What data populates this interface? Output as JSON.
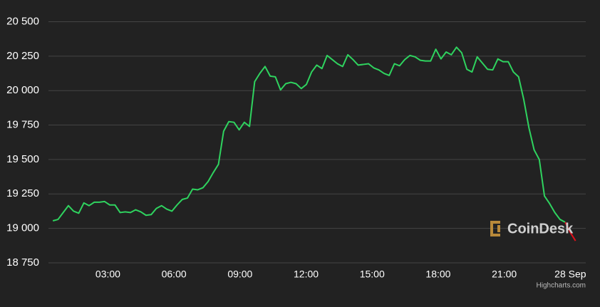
{
  "chart_data": {
    "type": "line",
    "x": [
      0.5,
      0.735,
      0.97,
      1.205,
      1.44,
      1.675,
      1.91,
      2.145,
      2.38,
      2.615,
      2.85,
      3.085,
      3.32,
      3.555,
      3.79,
      4.025,
      4.26,
      4.495,
      4.73,
      4.965,
      5.2,
      5.435,
      5.67,
      5.905,
      6.14,
      6.375,
      6.61,
      6.845,
      7.08,
      7.315,
      7.55,
      7.785,
      8.02,
      8.255,
      8.49,
      8.725,
      8.96,
      9.195,
      9.43,
      9.665,
      9.9,
      10.135,
      10.37,
      10.605,
      10.84,
      11.075,
      11.31,
      11.545,
      11.78,
      12.015,
      12.25,
      12.485,
      12.72,
      12.955,
      13.19,
      13.425,
      13.66,
      13.895,
      14.13,
      14.365,
      14.6,
      14.835,
      15.07,
      15.305,
      15.54,
      15.775,
      16.01,
      16.245,
      16.48,
      16.715,
      16.95,
      17.185,
      17.42,
      17.655,
      17.89,
      18.125,
      18.36,
      18.595,
      18.83,
      19.065,
      19.3,
      19.535,
      19.77,
      20.005,
      20.24,
      20.475,
      20.71,
      20.945,
      21.18,
      21.415,
      21.65,
      21.885,
      22.12,
      22.355,
      22.59,
      22.825,
      23.06,
      23.295,
      23.53,
      23.765,
      24.0,
      24.235
    ],
    "series": [
      {
        "color": "#2fd35f",
        "values": [
          19055,
          19065,
          19115,
          19165,
          19125,
          19110,
          19185,
          19165,
          19190,
          19190,
          19195,
          19170,
          19170,
          19115,
          19120,
          19115,
          19135,
          19120,
          19095,
          19100,
          19145,
          19165,
          19140,
          19125,
          19170,
          19210,
          19220,
          19285,
          19280,
          19295,
          19340,
          19405,
          19465,
          19705,
          19775,
          19770,
          19715,
          19770,
          19740,
          20065,
          20125,
          20175,
          20105,
          20100,
          20005,
          20050,
          20060,
          20050,
          20015,
          20045,
          20135,
          20185,
          20160,
          20255,
          20225,
          20195,
          20175,
          20260,
          20225,
          20185,
          20190,
          20195,
          20165,
          20150,
          20125,
          20110,
          20195,
          20180,
          20225,
          20255,
          20245,
          20220,
          20215,
          20215,
          20300,
          20230,
          20280,
          20260,
          20315,
          20275,
          20155,
          20135,
          20245,
          20200,
          20155,
          20150,
          20230,
          20210,
          20210,
          20135,
          20100,
          19935,
          19730,
          19570,
          19500,
          19235,
          19180,
          19115,
          19065,
          19045,
          null,
          null
        ]
      },
      {
        "color": "#e0101a",
        "values": [
          null,
          null,
          null,
          null,
          null,
          null,
          null,
          null,
          null,
          null,
          null,
          null,
          null,
          null,
          null,
          null,
          null,
          null,
          null,
          null,
          null,
          null,
          null,
          null,
          null,
          null,
          null,
          null,
          null,
          null,
          null,
          null,
          null,
          null,
          null,
          null,
          null,
          null,
          null,
          null,
          null,
          null,
          null,
          null,
          null,
          null,
          null,
          null,
          null,
          null,
          null,
          null,
          null,
          null,
          null,
          null,
          null,
          null,
          null,
          null,
          null,
          null,
          null,
          null,
          null,
          null,
          null,
          null,
          null,
          null,
          null,
          null,
          null,
          null,
          null,
          null,
          null,
          null,
          null,
          null,
          null,
          null,
          null,
          null,
          null,
          null,
          null,
          null,
          null,
          null,
          null,
          null,
          null,
          null,
          null,
          null,
          null,
          null,
          null,
          19045,
          18970,
          18910
        ]
      }
    ],
    "xlim": [
      0.3,
      24.7
    ],
    "xticks": [
      {
        "value": 3,
        "label": "03:00"
      },
      {
        "value": 6,
        "label": "06:00"
      },
      {
        "value": 9,
        "label": "09:00"
      },
      {
        "value": 12,
        "label": "12:00"
      },
      {
        "value": 15,
        "label": "15:00"
      },
      {
        "value": 18,
        "label": "18:00"
      },
      {
        "value": 21,
        "label": "21:00"
      },
      {
        "value": 24,
        "label": "28 Sep"
      }
    ],
    "ylim": [
      18750,
      20580
    ],
    "yticks": [
      {
        "value": 18750,
        "label": "18 750"
      },
      {
        "value": 19000,
        "label": "19 000"
      },
      {
        "value": 19250,
        "label": "19 250"
      },
      {
        "value": 19500,
        "label": "19 500"
      },
      {
        "value": 19750,
        "label": "19 750"
      },
      {
        "value": 20000,
        "label": "20 000"
      },
      {
        "value": 20250,
        "label": "20 250"
      },
      {
        "value": 20500,
        "label": "20 500"
      }
    ],
    "grid": true,
    "watermark": "CoinDesk",
    "credits": "Highcharts.com"
  }
}
